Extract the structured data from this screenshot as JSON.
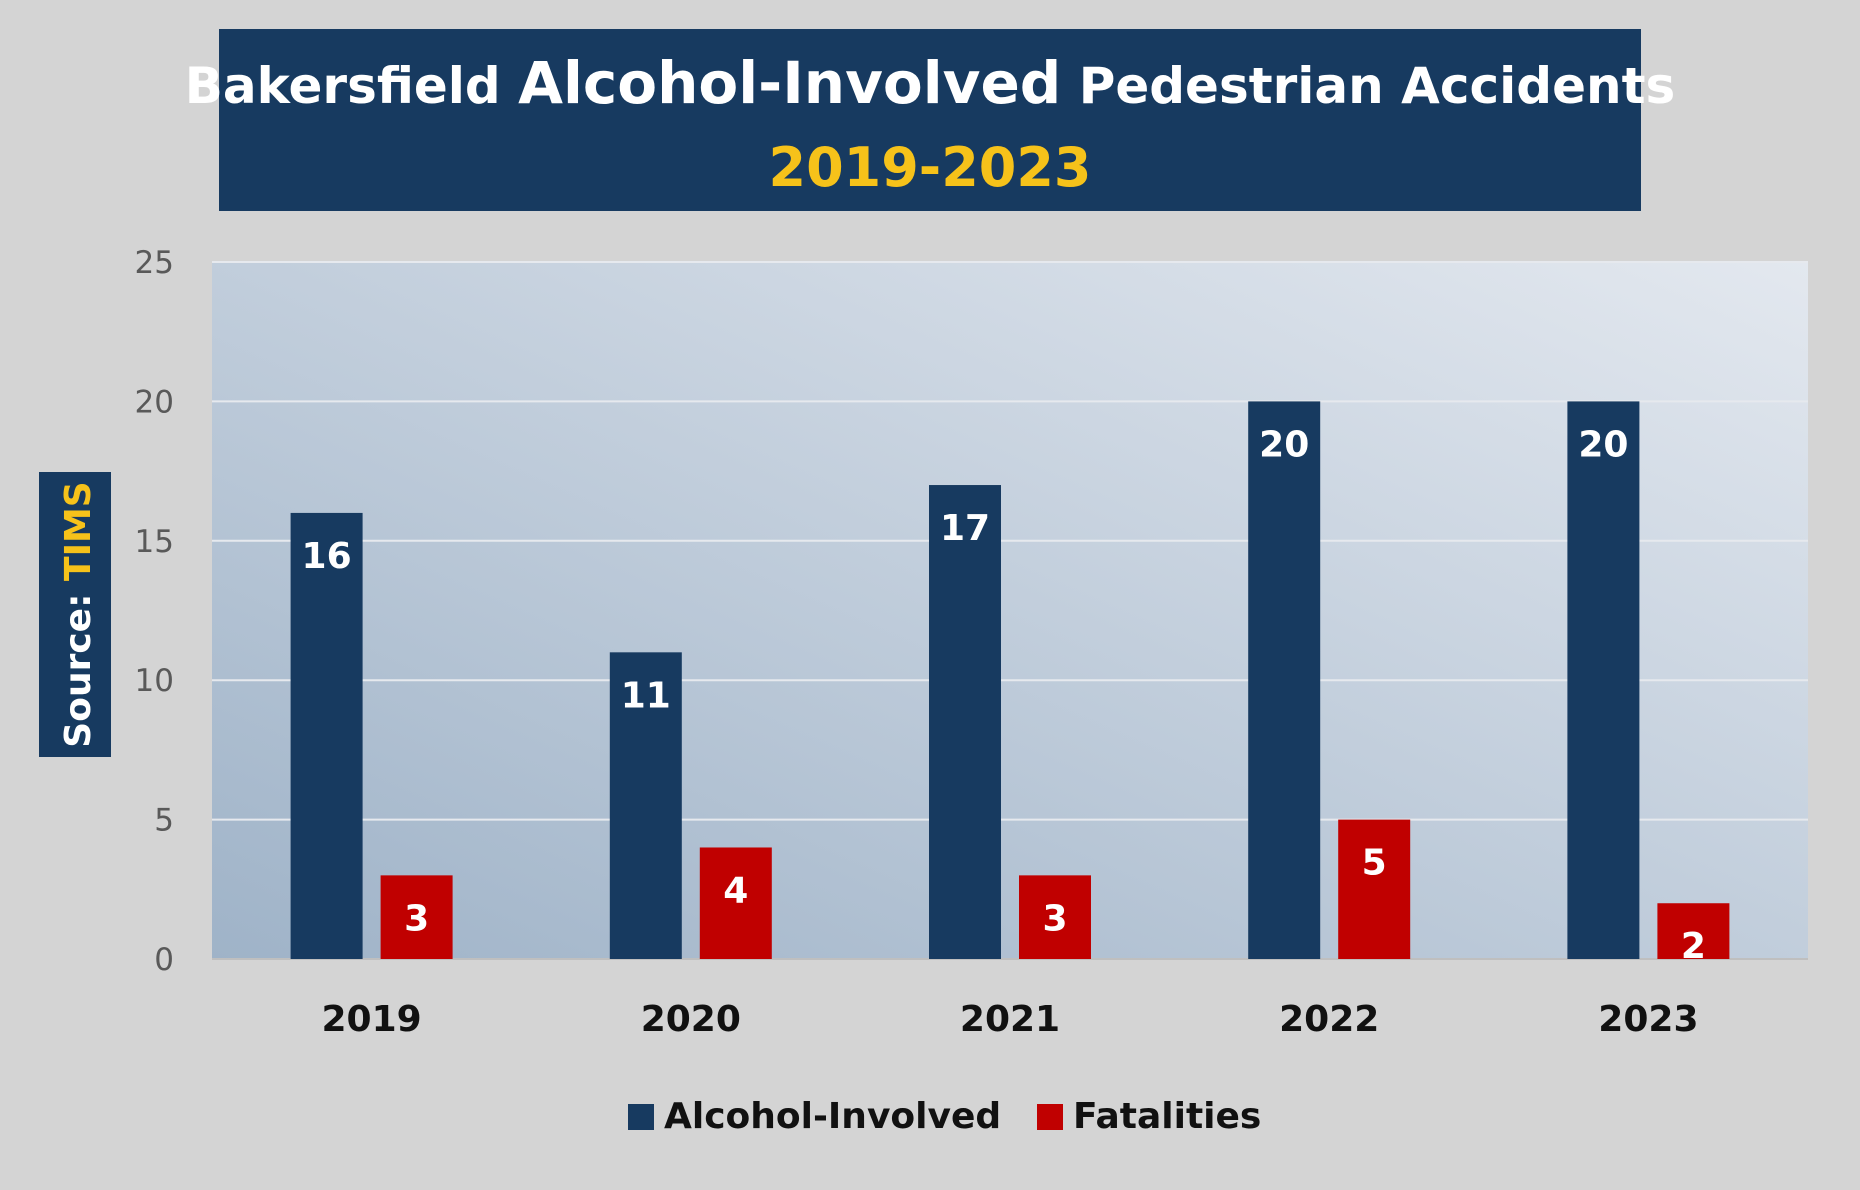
{
  "colors": {
    "background": "#d4d4d4",
    "title_bg": "#173a60",
    "title_text": "#ffffff",
    "subtitle_text": "#f6c21a",
    "alcohol": "#173a60",
    "fatalities": "#c00000",
    "axis_text": "#595959",
    "category_text": "#111111",
    "gridline": "#e6e9ee",
    "plot_gradient_start": "#9fb3c8",
    "plot_gradient_end": "#e3e8ef"
  },
  "title": {
    "part1": "Bakersfield ",
    "part2": "Alcohol-Involved",
    "part3": " Pedestrian Accidents",
    "subtitle": "2019-2023"
  },
  "source": {
    "label": "Source: ",
    "value": "TIMS"
  },
  "chart_data": {
    "type": "bar",
    "categories": [
      "2019",
      "2020",
      "2021",
      "2022",
      "2023"
    ],
    "series": [
      {
        "name": "Alcohol-Involved",
        "values": [
          16,
          11,
          17,
          20,
          20
        ],
        "color": "#173a60"
      },
      {
        "name": "Fatalities",
        "values": [
          3,
          4,
          3,
          5,
          2
        ],
        "color": "#c00000"
      }
    ],
    "ylim": [
      0,
      25
    ],
    "yticks": [
      0,
      5,
      10,
      15,
      20,
      25
    ],
    "grid": true,
    "legend_position": "bottom",
    "data_labels": true
  }
}
